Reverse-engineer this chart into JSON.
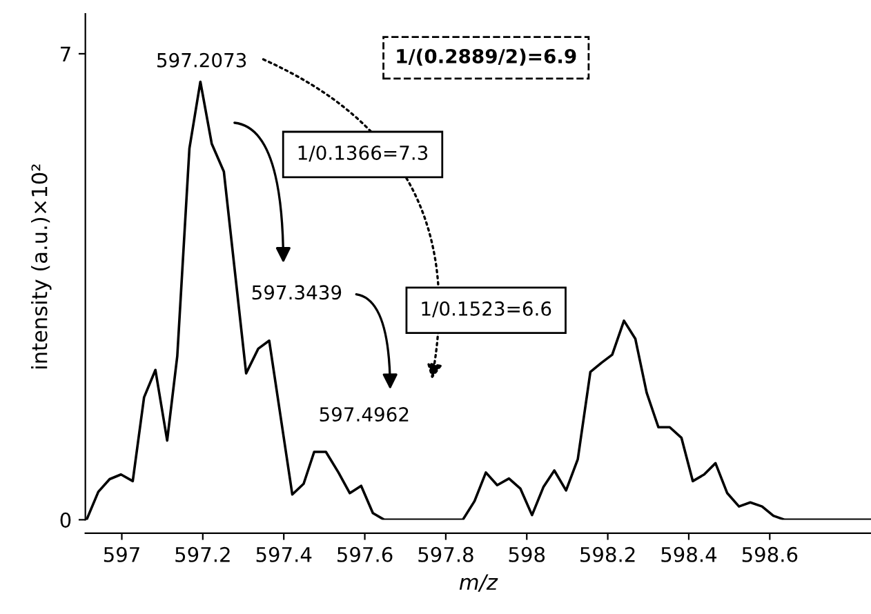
{
  "chart_data": {
    "type": "line",
    "xlabel": "m/z",
    "ylabel": "intensity (a.u.)×10²",
    "x": [
      596.913,
      596.942,
      596.97,
      596.998,
      597.027,
      597.055,
      597.083,
      597.112,
      597.137,
      597.167,
      597.194,
      597.222,
      597.252,
      597.307,
      597.337,
      597.364,
      597.421,
      597.449,
      597.475,
      597.504,
      597.535,
      597.563,
      597.591,
      597.62,
      597.648,
      597.842,
      597.871,
      597.899,
      597.927,
      597.956,
      597.984,
      598.013,
      598.041,
      598.068,
      598.097,
      598.126,
      598.157,
      598.185,
      598.211,
      598.24,
      598.268,
      598.296,
      598.325,
      598.353,
      598.382,
      598.41,
      598.438,
      598.466,
      598.495,
      598.524,
      598.552,
      598.581,
      598.609,
      598.637,
      598.85
    ],
    "series": [
      {
        "color": "#000000",
        "values": [
          0,
          0.42,
          0.61,
          0.68,
          0.58,
          1.84,
          2.25,
          1.19,
          2.46,
          5.58,
          6.58,
          5.65,
          5.23,
          2.2,
          2.57,
          2.69,
          0.38,
          0.54,
          1.02,
          1.02,
          0.71,
          0.4,
          0.51,
          0.1,
          0,
          0,
          0.28,
          0.71,
          0.52,
          0.62,
          0.47,
          0.07,
          0.49,
          0.74,
          0.44,
          0.91,
          2.22,
          2.36,
          2.48,
          2.99,
          2.72,
          1.91,
          1.39,
          1.39,
          1.23,
          0.58,
          0.68,
          0.85,
          0.4,
          0.2,
          0.26,
          0.2,
          0.06,
          0,
          0
        ]
      }
    ],
    "xlim": [
      596.91,
      598.85
    ],
    "ylim": [
      0,
      7.6
    ],
    "xticks": [
      597,
      597.2,
      597.4,
      597.6,
      597.8,
      598,
      598.2,
      598.4,
      598.6
    ],
    "yticks": [
      0,
      7
    ],
    "grid": false,
    "legend": false,
    "marker": "none",
    "line_style": "solid",
    "annotations": [
      "597.2073",
      "597.3439",
      "597.4962",
      "1/(0.2889/2)=6.9",
      "1/0.1366=7.3",
      "1/0.1523=6.6"
    ]
  }
}
